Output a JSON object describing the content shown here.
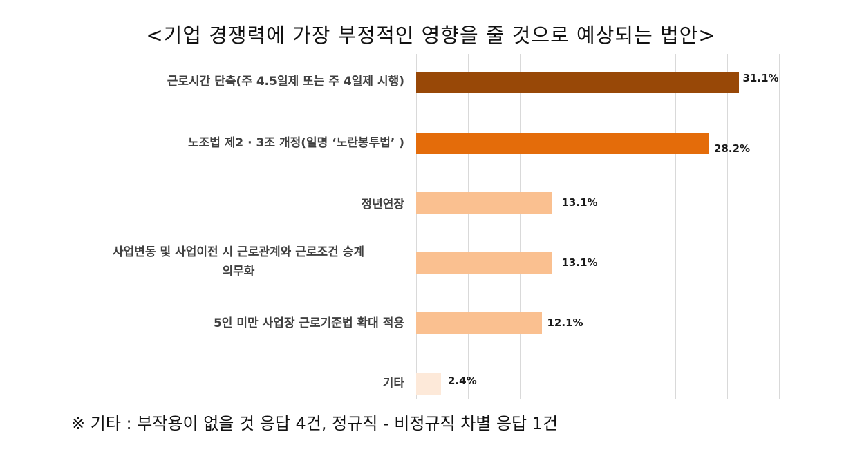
{
  "title": "<기업 경쟁력에 가장 부정적인 영향을 줄 것으로 예상되는 법안>",
  "footnote": "※ 기타 : 부작용이 없을 것 응답 4건, 정규직 - 비정규직 차별 응답 1건",
  "chart_data": {
    "type": "bar",
    "orientation": "horizontal",
    "title": "<기업 경쟁력에 가장 부정적인 영향을 줄 것으로 예상되는 법안>",
    "xlabel": "",
    "ylabel": "",
    "xlim": [
      0,
      35
    ],
    "grid": true,
    "grid_step": 5,
    "legend": null,
    "categories": [
      "근로시간 단축(주 4.5일제 또는 주 4일제 시행)",
      "노조법 제2·3조 개정(일명 ‘노란봉투법’)",
      "정년연장",
      "사업변동 및 사업이전 시 근로관계와 근로조건 승계 의무화",
      "5인 미만 사업장 근로기준법 확대 적용",
      "기타"
    ],
    "values": [
      31.1,
      28.2,
      13.1,
      13.1,
      12.1,
      2.4
    ],
    "value_labels": [
      "31.1%",
      "28.2%",
      "13.1%",
      "13.1%",
      "12.1%",
      "2.4%"
    ],
    "colors": [
      "#984807",
      "#E46C0A",
      "#FAC090",
      "#FAC090",
      "#FAC090",
      "#FDE9D9"
    ],
    "annotation": "※ 기타 : 부작용이 없을 것 응답 4건, 정규직 - 비정규직 차별 응답 1건"
  },
  "labels": {
    "cat0": "근로시간 단축(주 4.5일제 또는 주 4일제 시행)",
    "cat1": "노조법 제2 · 3조 개정(일명  ‘노란봉투법’ )",
    "cat2": "정년연장",
    "cat3_line1": "사업변동 및 사업이전 시 근로관계와 근로조건 승계",
    "cat3_line2": "의무화",
    "cat4": "5인 미만 사업장 근로기준법 확대 적용",
    "cat5": "기타"
  }
}
